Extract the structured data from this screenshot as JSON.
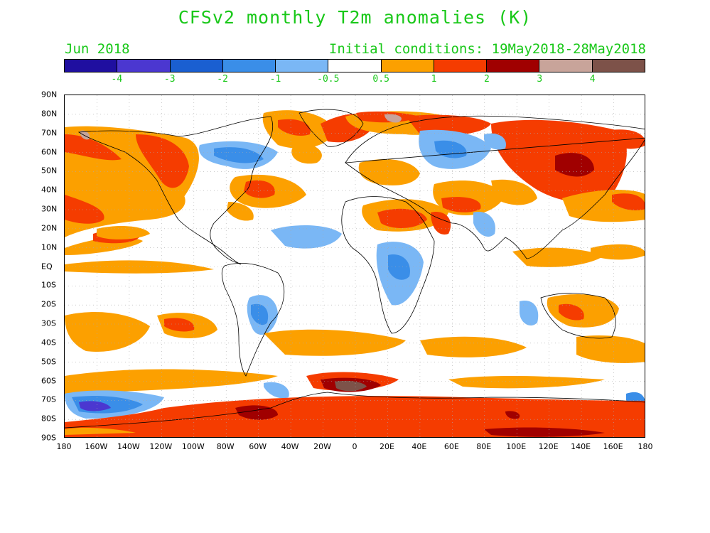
{
  "title": "CFSv2 monthly T2m anomalies (K)",
  "subtitle_left": "Jun 2018",
  "subtitle_right": "Initial conditions: 19May2018-28May2018",
  "colorbar": {
    "colors": [
      "#1f0fa0",
      "#4b37d0",
      "#1a5fd1",
      "#3a8ee8",
      "#7ab7f5",
      "#ffffff",
      "#fca000",
      "#f53c00",
      "#a00000",
      "#c8a49a",
      "#7d5249"
    ],
    "labels": [
      "-4",
      "-3",
      "-2",
      "-1",
      "-0.5",
      "0.5",
      "1",
      "2",
      "3",
      "4"
    ]
  },
  "axes": {
    "lat_labels": [
      "90N",
      "80N",
      "70N",
      "60N",
      "50N",
      "40N",
      "30N",
      "20N",
      "10N",
      "EQ",
      "10S",
      "20S",
      "30S",
      "40S",
      "50S",
      "60S",
      "70S",
      "80S",
      "90S"
    ],
    "lon_labels": [
      "180",
      "160W",
      "140W",
      "120W",
      "100W",
      "80W",
      "60W",
      "40W",
      "20W",
      "0",
      "20E",
      "40E",
      "60E",
      "80E",
      "100E",
      "120E",
      "140E",
      "160E",
      "180"
    ]
  }
}
